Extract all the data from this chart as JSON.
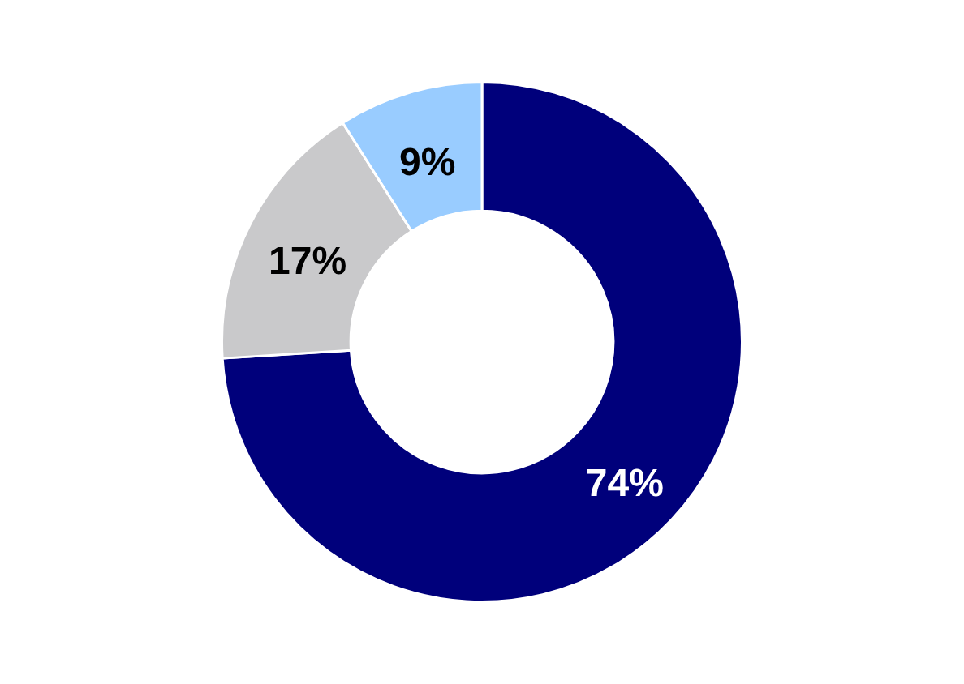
{
  "chart_data": {
    "type": "donut",
    "categories": [
      null,
      null,
      null
    ],
    "values": [
      74,
      17,
      9
    ],
    "value_labels": [
      "74%",
      "17%",
      "9%"
    ],
    "colors": [
      "#00007b",
      "#c9c9cb",
      "#99ccff"
    ],
    "legend": false
  }
}
